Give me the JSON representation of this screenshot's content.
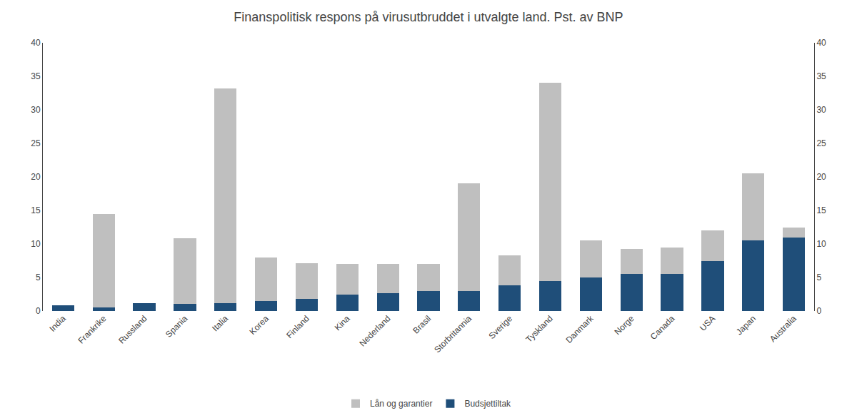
{
  "chart_data": {
    "type": "bar",
    "stacked": true,
    "title": "Finanspolitisk respons på virusutbruddet i utvalgte land. Pst. av BNP",
    "categories": [
      "India",
      "Frankrike",
      "Russland",
      "Spania",
      "Italia",
      "Korea",
      "Finland",
      "Kina",
      "Nederland",
      "Brasil",
      "Storbritannia",
      "Sverige",
      "Tyskland",
      "Danmark",
      "Norge",
      "Canada",
      "USA",
      "Japan",
      "Australia"
    ],
    "series": [
      {
        "name": "Budsjettiltak",
        "color": "#1f4e79",
        "values": [
          0.8,
          0.5,
          1.2,
          1.1,
          1.2,
          1.5,
          1.8,
          2.5,
          2.7,
          3.0,
          3.0,
          3.8,
          4.5,
          5.0,
          5.5,
          5.5,
          7.5,
          10.5,
          11.0
        ]
      },
      {
        "name": "Lån og garantier",
        "color": "#bfbfbf",
        "values": [
          0.0,
          14.0,
          0.0,
          9.8,
          32.0,
          6.5,
          5.3,
          4.5,
          4.3,
          4.0,
          16.0,
          4.5,
          29.5,
          5.5,
          3.8,
          4.0,
          4.5,
          10.0,
          1.5
        ]
      }
    ],
    "ylim": [
      0,
      40
    ],
    "yticks": [
      0,
      5,
      10,
      15,
      20,
      25,
      30,
      35,
      40
    ],
    "y2lim": [
      0,
      40
    ],
    "y2ticks": [
      0,
      5,
      10,
      15,
      20,
      25,
      30,
      35,
      40
    ],
    "grid": false,
    "legend": "bottom"
  }
}
